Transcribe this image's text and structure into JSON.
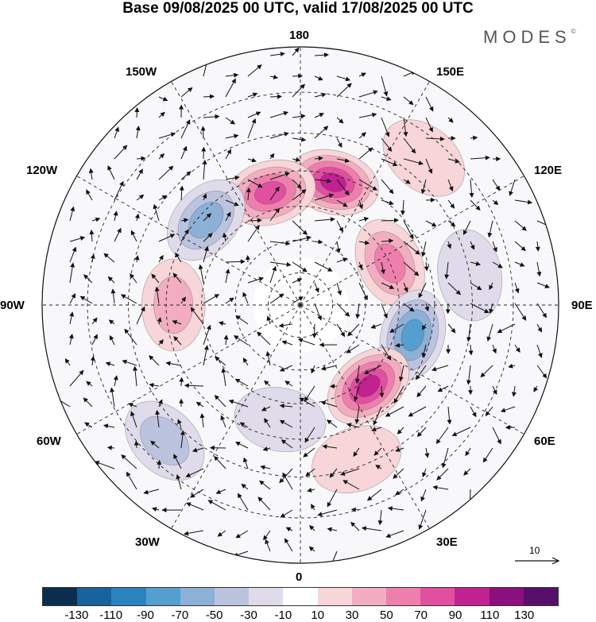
{
  "header": {
    "title": "Base 09/08/2025 00 UTC, valid 17/08/2025 00 UTC",
    "brand": "MODES",
    "brand_mark": "©"
  },
  "map": {
    "projection": "north polar stereographic",
    "longitude_labels": {
      "top": "180",
      "top_left": "150W",
      "top_right": "150E",
      "upper_left": "120W",
      "upper_right": "120E",
      "left": "90W",
      "right": "90E",
      "lower_left": "60W",
      "lower_right": "60E",
      "bottom_left": "30W",
      "bottom_right": "30E",
      "bottom": "0"
    },
    "reference_vector_label": "10",
    "anomaly_centers": [
      {
        "lon": 165,
        "lat": 52,
        "value": 110
      },
      {
        "lon": -165,
        "lat": 55,
        "value": 90
      },
      {
        "lon": -132,
        "lat": 52,
        "value": -70
      },
      {
        "lon": 115,
        "lat": 60,
        "value": 70
      },
      {
        "lon": 75,
        "lat": 55,
        "value": -90
      },
      {
        "lon": 40,
        "lat": 58,
        "value": 110
      },
      {
        "lon": -90,
        "lat": 52,
        "value": 50
      },
      {
        "lon": -45,
        "lat": 35,
        "value": -50
      },
      {
        "lon": 20,
        "lat": 42,
        "value": 30
      },
      {
        "lon": 140,
        "lat": 35,
        "value": 30
      },
      {
        "lon": 100,
        "lat": 40,
        "value": -30
      },
      {
        "lon": -10,
        "lat": 55,
        "value": -30
      }
    ]
  },
  "colorbar": {
    "colors": [
      "#0b2e4e",
      "#18629e",
      "#2c82bf",
      "#549fd0",
      "#8db0d6",
      "#bcc3df",
      "#dfdbeb",
      "#ffffff",
      "#f7d5d8",
      "#f2aec0",
      "#ee7fac",
      "#e04fa0",
      "#c22190",
      "#8c0f7e",
      "#571069"
    ],
    "tick_labels": [
      "-130",
      "-110",
      "-90",
      "-70",
      "-50",
      "-30",
      "-10",
      "10",
      "30",
      "50",
      "70",
      "90",
      "110",
      "130"
    ]
  }
}
